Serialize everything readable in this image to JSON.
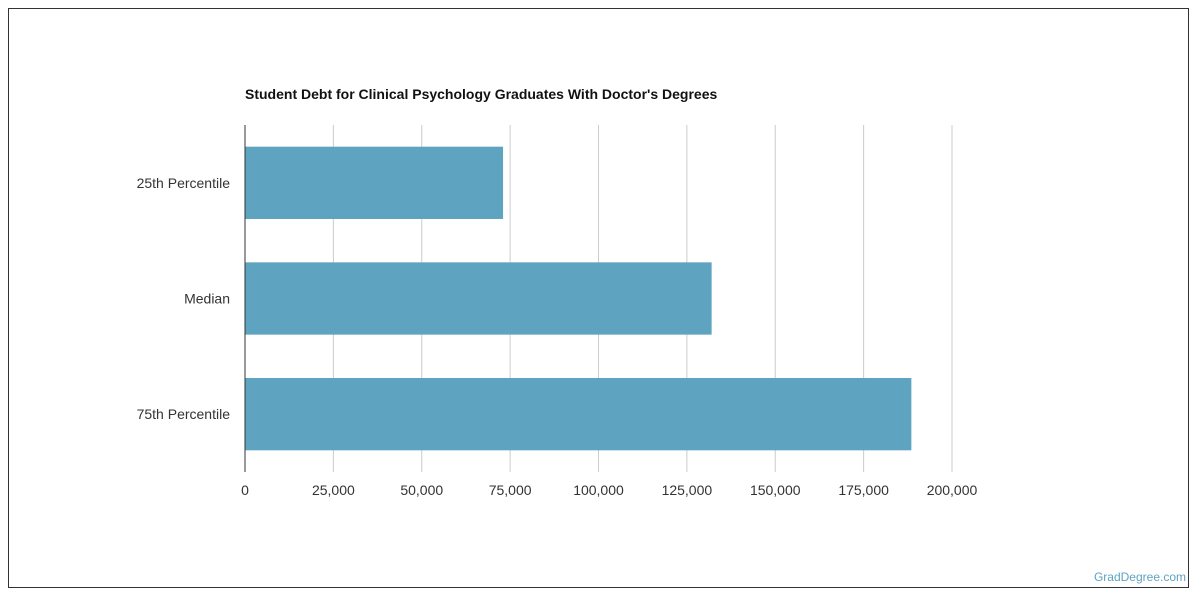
{
  "chart_data": {
    "type": "bar",
    "orientation": "horizontal",
    "title": "Student Debt for Clinical Psychology Graduates With Doctor's Degrees",
    "categories": [
      "25th Percentile",
      "Median",
      "75th Percentile"
    ],
    "values": [
      73000,
      132000,
      188500
    ],
    "xlim": [
      0,
      200000
    ],
    "xticks": [
      0,
      25000,
      50000,
      75000,
      100000,
      125000,
      150000,
      175000,
      200000
    ],
    "xtick_labels": [
      "0",
      "25,000",
      "50,000",
      "75,000",
      "100,000",
      "125,000",
      "150,000",
      "175,000",
      "200,000"
    ],
    "grid": true,
    "bar_color": "#5ea3c0",
    "grid_color": "#cccccc",
    "axis_color": "#333333"
  },
  "watermark": "GradDegree.com"
}
